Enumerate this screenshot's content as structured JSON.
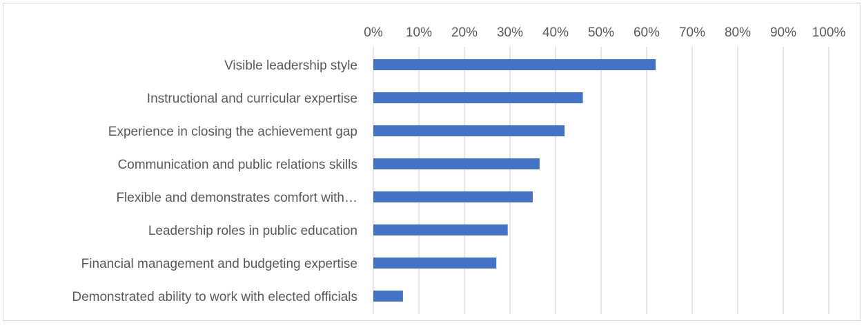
{
  "chart_data": {
    "type": "bar",
    "orientation": "horizontal",
    "title": "",
    "xlabel": "",
    "ylabel": "",
    "xlim": [
      0,
      100
    ],
    "x_ticks": [
      "0%",
      "10%",
      "20%",
      "30%",
      "40%",
      "50%",
      "60%",
      "70%",
      "80%",
      "90%",
      "100%"
    ],
    "x_axis_position": "top",
    "grid": true,
    "legend": "none",
    "categories": [
      "Visible leadership style",
      "Instructional and curricular expertise",
      "Experience in closing the achievement gap",
      "Communication and public relations skills",
      "Flexible and demonstrates comfort with…",
      "Leadership roles in public education",
      "Financial management and budgeting expertise",
      "Demonstrated ability to work with elected officials"
    ],
    "values": [
      62,
      46,
      42,
      36.5,
      35,
      29.5,
      27,
      6.5
    ],
    "bar_color": "#4472c4",
    "gridline_color": "#d9d9d9",
    "text_color": "#595959"
  }
}
